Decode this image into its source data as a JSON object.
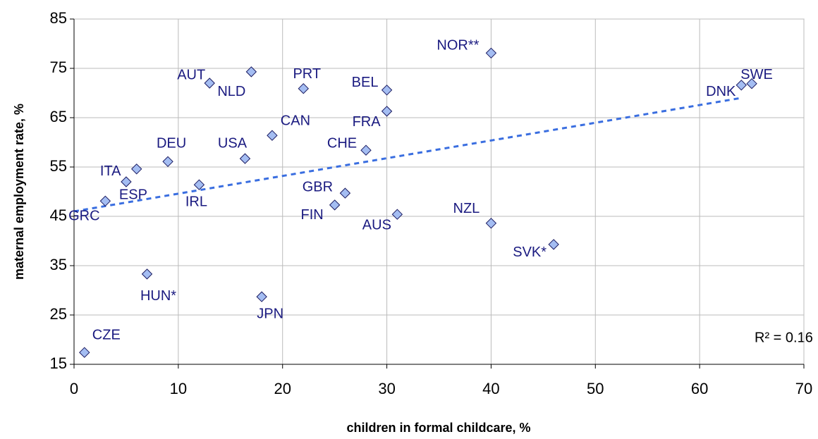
{
  "chart_data": {
    "type": "scatter",
    "xlabel": "children in formal childcare, %",
    "ylabel": "maternal employment rate, %",
    "annotation": "R² = 0.16",
    "labels": [
      "CZE",
      "GRC",
      "ESP",
      "ITA",
      "HUN*",
      "DEU",
      "AUT",
      "IRL",
      "NLD",
      "USA",
      "CAN",
      "JPN",
      "PRT",
      "BEL",
      "FRA",
      "CHE",
      "GBR",
      "FIN",
      "AUS",
      "NOR**",
      "NZL",
      "SVK*",
      "DNK",
      "SWE"
    ],
    "x": [
      1,
      3,
      5,
      6,
      7,
      9,
      13,
      12,
      17,
      16.4,
      19,
      18,
      22,
      30,
      30,
      28,
      26,
      25,
      31,
      40,
      40,
      46,
      64,
      65
    ],
    "y": [
      17.4,
      48.1,
      52,
      54.6,
      33.3,
      56.1,
      72,
      51.4,
      74.3,
      56.7,
      61.4,
      28.7,
      70.9,
      70.6,
      66.3,
      58.4,
      49.7,
      47.3,
      45.4,
      78.1,
      43.6,
      39.3,
      71.6,
      71.9
    ],
    "color": "#a4bdf2",
    "trendline": {
      "x": [
        0,
        64
      ],
      "y": [
        46,
        69
      ],
      "color": "#3a6ee0"
    },
    "xlim": [
      0,
      70
    ],
    "xticks": [
      0,
      10,
      20,
      30,
      40,
      50,
      60,
      70
    ],
    "ylim": [
      15,
      85
    ],
    "yticks": [
      15,
      25,
      35,
      45,
      55,
      65,
      75,
      85
    ],
    "grid": true
  }
}
